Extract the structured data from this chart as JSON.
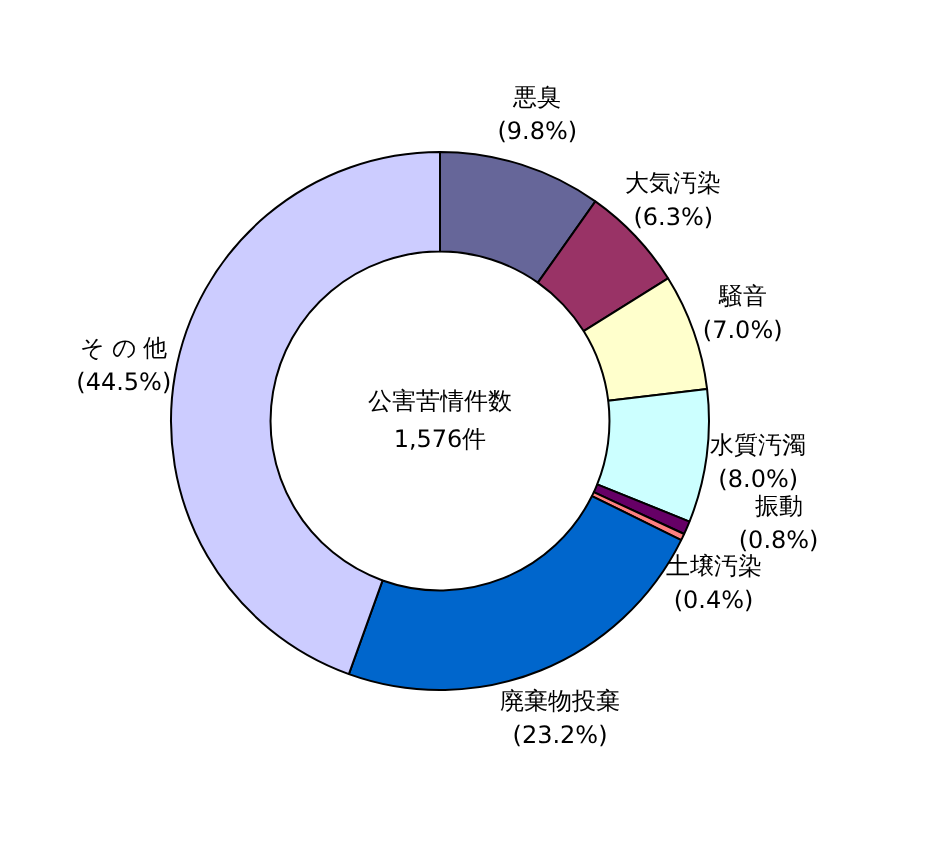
{
  "chart_data": {
    "type": "donut",
    "title": "公害苦情件数",
    "subtitle": "1,576件",
    "legend": false,
    "categories": [
      "悪臭",
      "大気汚染",
      "騒音",
      "水質汚濁",
      "振動",
      "土壌汚染",
      "廃棄物投棄",
      "そ の 他"
    ],
    "values": [
      9.8,
      6.3,
      7.0,
      8.0,
      0.8,
      0.4,
      23.2,
      44.5
    ],
    "value_labels": [
      "(9.8%)",
      "(6.3%)",
      "(7.0%)",
      "(8.0%)",
      "(0.8%)",
      "(0.4%)",
      "(23.2%)",
      "(44.5%)"
    ],
    "colors": [
      "#666699",
      "#993366",
      "#ffffcc",
      "#ccffff",
      "#660066",
      "#ff8080",
      "#0066cc",
      "#ccccff"
    ]
  }
}
